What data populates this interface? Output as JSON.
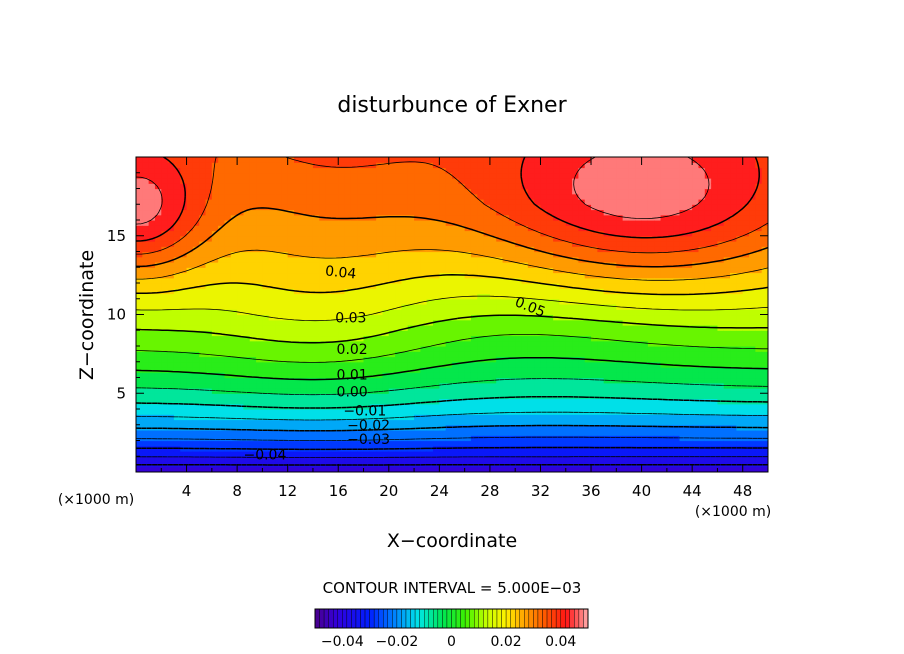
{
  "chart_data": {
    "type": "heatmap",
    "title": "disturbunce of Exner",
    "xlabel": "X−coordinate",
    "ylabel": "Z−coordinate",
    "x_unit": "(×1000 m)",
    "y_unit": "(×1000 m)",
    "xlim": [
      0,
      50
    ],
    "ylim": [
      0,
      20
    ],
    "x_ticks": [
      4,
      8,
      12,
      16,
      20,
      24,
      28,
      32,
      36,
      40,
      44,
      48
    ],
    "y_ticks": [
      5,
      10,
      15
    ],
    "contour_interval_text": "CONTOUR INTERVAL = 5.000E−03",
    "contour_labels": [
      {
        "text": "0.05",
        "x": 31.2,
        "z": 10.5
      },
      {
        "text": "0.04",
        "x": 16.2,
        "z": 12.7
      },
      {
        "text": "0.03",
        "x": 17.0,
        "z": 9.8
      },
      {
        "text": "0.02",
        "x": 17.1,
        "z": 7.8
      },
      {
        "text": "0.01",
        "x": 17.1,
        "z": 6.2
      },
      {
        "text": "0.00",
        "x": 17.1,
        "z": 5.1
      },
      {
        "text": "−0.01",
        "x": 18.1,
        "z": 3.9
      },
      {
        "text": "−0.02",
        "x": 18.4,
        "z": 3.0
      },
      {
        "text": "−0.03",
        "x": 18.4,
        "z": 2.1
      },
      {
        "text": "−0.04",
        "x": 10.2,
        "z": 1.1
      }
    ],
    "colorbar": {
      "range": [
        -0.05,
        0.05
      ],
      "tick_labels": [
        "−0.04",
        "−0.02",
        "0",
        "0.02",
        "0.04"
      ],
      "tick_values": [
        -0.04,
        -0.02,
        0,
        0.02,
        0.04
      ]
    }
  }
}
